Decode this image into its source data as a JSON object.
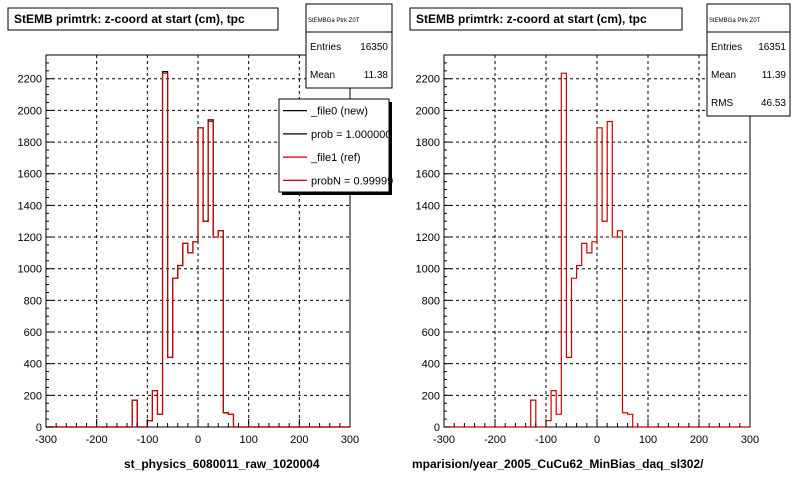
{
  "colors": {
    "new": "#000000",
    "ref": "#cc0000",
    "grid": "#000000",
    "frame": "#000000"
  },
  "stats_box_tag": "StEMBGa Ptrk Z0T",
  "footer_left": "st_physics_6080011_raw_1020004",
  "footer_right": "mparision/year_2005_CuCu62_MinBias_daq_sl302/",
  "chart_data": [
    {
      "type": "bar",
      "title": "StEMB primtrk: z-coord at start (cm), tpc",
      "xlabel": "",
      "ylabel": "",
      "xlim": [
        -300,
        300
      ],
      "ylim": [
        0,
        2350
      ],
      "xticks": [
        -300,
        -200,
        -100,
        0,
        100,
        200,
        300
      ],
      "yticks": [
        0,
        200,
        400,
        600,
        800,
        1000,
        1200,
        1400,
        1600,
        1800,
        2000,
        2200
      ],
      "grid": true,
      "bin_width": 10,
      "bin_starts": [
        -300,
        -290,
        -280,
        -270,
        -260,
        -250,
        -240,
        -230,
        -220,
        -210,
        -200,
        -190,
        -180,
        -170,
        -160,
        -150,
        -140,
        -130,
        -120,
        -110,
        -100,
        -90,
        -80,
        -70,
        -60,
        -50,
        -40,
        -30,
        -20,
        -10,
        0,
        10,
        20,
        30,
        40,
        50,
        60,
        70,
        80,
        90,
        100,
        110,
        120,
        130,
        140,
        150,
        160,
        170,
        180,
        190,
        200,
        210,
        220,
        230,
        240,
        250,
        260,
        270,
        280,
        290
      ],
      "series": [
        {
          "name": "_file0 (new)",
          "values": [
            0,
            0,
            0,
            0,
            0,
            0,
            0,
            0,
            0,
            0,
            0,
            0,
            0,
            0,
            0,
            0,
            0,
            170,
            0,
            0,
            40,
            230,
            80,
            2245,
            440,
            940,
            1020,
            1160,
            1100,
            1170,
            1890,
            1300,
            1940,
            1200,
            1240,
            90,
            80,
            0,
            0,
            0,
            0,
            0,
            0,
            0,
            0,
            0,
            0,
            0,
            0,
            0,
            0,
            0,
            0,
            0,
            0,
            0,
            0,
            0,
            0,
            0
          ]
        },
        {
          "name": "_file1 (ref)",
          "values": [
            0,
            0,
            0,
            0,
            0,
            0,
            0,
            0,
            0,
            0,
            0,
            0,
            0,
            0,
            0,
            0,
            0,
            170,
            0,
            0,
            40,
            230,
            80,
            2235,
            440,
            940,
            1020,
            1160,
            1100,
            1170,
            1890,
            1300,
            1930,
            1200,
            1240,
            90,
            80,
            0,
            0,
            0,
            0,
            0,
            0,
            0,
            0,
            0,
            0,
            0,
            0,
            0,
            0,
            0,
            0,
            0,
            0,
            0,
            0,
            0,
            0,
            0
          ]
        }
      ],
      "stats": {
        "Entries": "16350",
        "Mean": "11.38"
      },
      "legend": {
        "placement": "top-right",
        "entries": [
          {
            "label": "_file0 (new)",
            "color": "#000000"
          },
          {
            "label": "prob = 1.000000",
            "color": "#000000"
          },
          {
            "label": "_file1 (ref)",
            "color": "#cc0000"
          },
          {
            "label": "probN = 0.99999",
            "color": "#cc0000"
          }
        ]
      }
    },
    {
      "type": "bar",
      "title": "StEMB primtrk: z-coord at start (cm), tpc",
      "xlabel": "",
      "ylabel": "",
      "xlim": [
        -300,
        300
      ],
      "ylim": [
        0,
        2350
      ],
      "xticks": [
        -300,
        -200,
        -100,
        0,
        100,
        200,
        300
      ],
      "yticks": [
        0,
        200,
        400,
        600,
        800,
        1000,
        1200,
        1400,
        1600,
        1800,
        2000,
        2200
      ],
      "grid": true,
      "bin_width": 10,
      "bin_starts": [
        -300,
        -290,
        -280,
        -270,
        -260,
        -250,
        -240,
        -230,
        -220,
        -210,
        -200,
        -190,
        -180,
        -170,
        -160,
        -150,
        -140,
        -130,
        -120,
        -110,
        -100,
        -90,
        -80,
        -70,
        -60,
        -50,
        -40,
        -30,
        -20,
        -10,
        0,
        10,
        20,
        30,
        40,
        50,
        60,
        70,
        80,
        90,
        100,
        110,
        120,
        130,
        140,
        150,
        160,
        170,
        180,
        190,
        200,
        210,
        220,
        230,
        240,
        250,
        260,
        270,
        280,
        290
      ],
      "series": [
        {
          "name": "_file1 (ref)",
          "values": [
            0,
            0,
            0,
            0,
            0,
            0,
            0,
            0,
            0,
            0,
            0,
            0,
            0,
            0,
            0,
            0,
            0,
            170,
            0,
            0,
            40,
            230,
            80,
            2235,
            440,
            940,
            1020,
            1160,
            1100,
            1170,
            1890,
            1300,
            1930,
            1200,
            1240,
            90,
            80,
            0,
            0,
            0,
            0,
            0,
            0,
            0,
            0,
            0,
            0,
            0,
            0,
            0,
            0,
            0,
            0,
            0,
            0,
            0,
            0,
            0,
            0,
            0
          ]
        }
      ],
      "stats": {
        "Entries": "16351",
        "Mean": "11.39",
        "RMS": "46.53"
      }
    }
  ]
}
